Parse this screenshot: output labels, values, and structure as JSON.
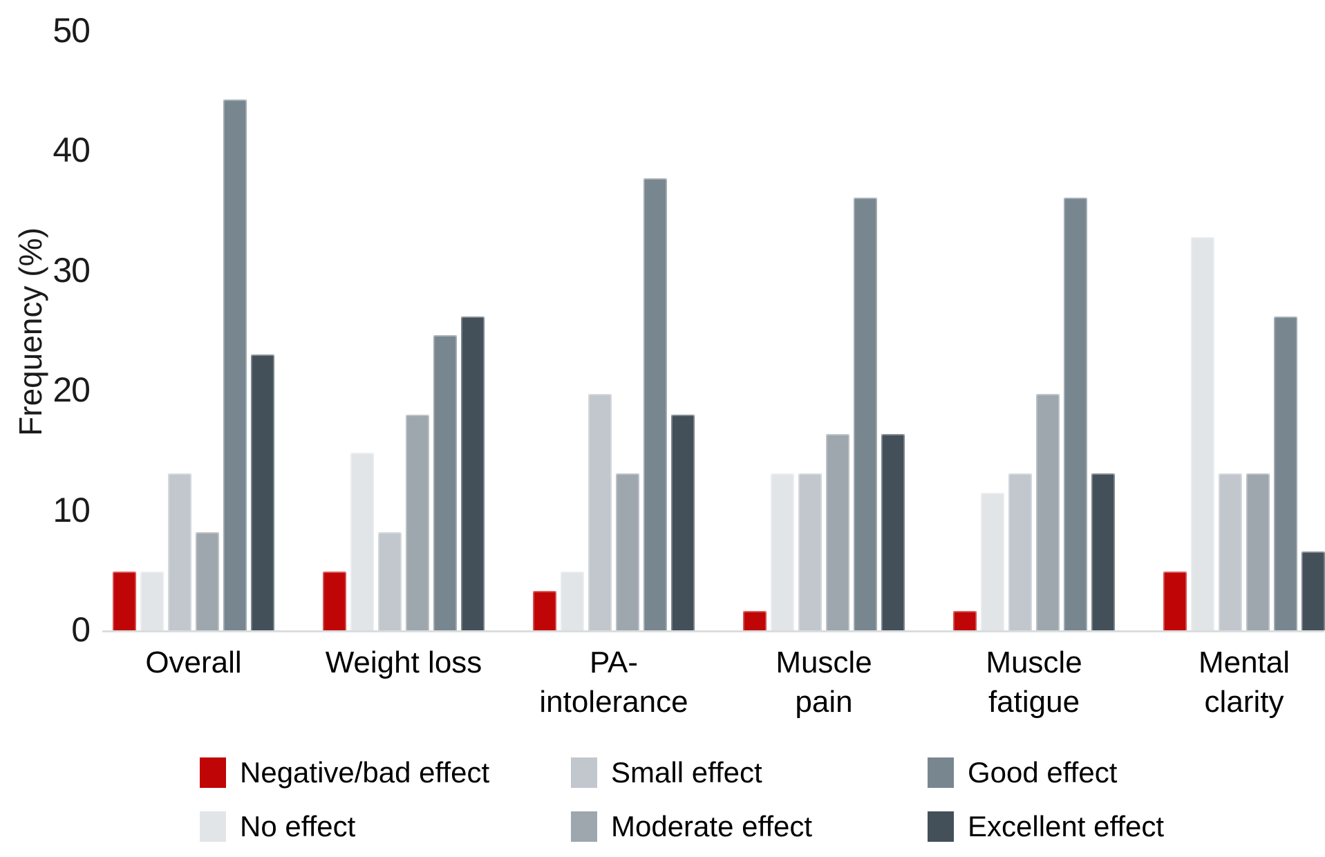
{
  "chart_data": {
    "type": "bar",
    "title": "",
    "xlabel": "",
    "ylabel": "Frequency (%)",
    "ylim": [
      0,
      50
    ],
    "yticks": [
      0,
      10,
      20,
      30,
      40,
      50
    ],
    "grid": false,
    "legend_position": "bottom",
    "axis_line_color": "#d8dbdc",
    "text_color": "#1b1b1b",
    "categories": [
      "Overall",
      "Weight loss",
      "PA-intolerance",
      "Muscle pain",
      "Muscle fatigue",
      "Mental clarity"
    ],
    "category_label_lines": [
      [
        "Overall"
      ],
      [
        "Weight loss"
      ],
      [
        "PA-",
        "intolerance"
      ],
      [
        "Muscle",
        "pain"
      ],
      [
        "Muscle",
        "fatigue"
      ],
      [
        "Mental",
        "clarity"
      ]
    ],
    "series": [
      {
        "name": "Negative/bad effect",
        "color": "#c00507",
        "values": [
          4.9,
          4.9,
          3.3,
          1.6,
          1.6,
          4.9
        ]
      },
      {
        "name": "No effect",
        "color": "#e1e5e8",
        "values": [
          4.9,
          14.8,
          4.9,
          13.1,
          11.5,
          32.8
        ]
      },
      {
        "name": "Small effect",
        "color": "#c1c7cc",
        "values": [
          13.1,
          8.2,
          19.7,
          13.1,
          13.1,
          13.1
        ]
      },
      {
        "name": "Moderate effect",
        "color": "#9da7ad",
        "values": [
          8.2,
          18.0,
          13.1,
          16.4,
          19.7,
          13.1
        ]
      },
      {
        "name": "Good effect",
        "color": "#78868f",
        "values": [
          44.3,
          24.6,
          37.7,
          36.1,
          36.1,
          26.2
        ]
      },
      {
        "name": "Excellent effect",
        "color": "#43505a",
        "values": [
          23.0,
          26.2,
          18.0,
          16.4,
          13.1,
          6.6
        ]
      }
    ],
    "legend_rows": [
      [
        "Negative/bad effect",
        "Small effect",
        "Good effect"
      ],
      [
        "No effect",
        "Moderate effect",
        "Excellent effect"
      ]
    ]
  }
}
